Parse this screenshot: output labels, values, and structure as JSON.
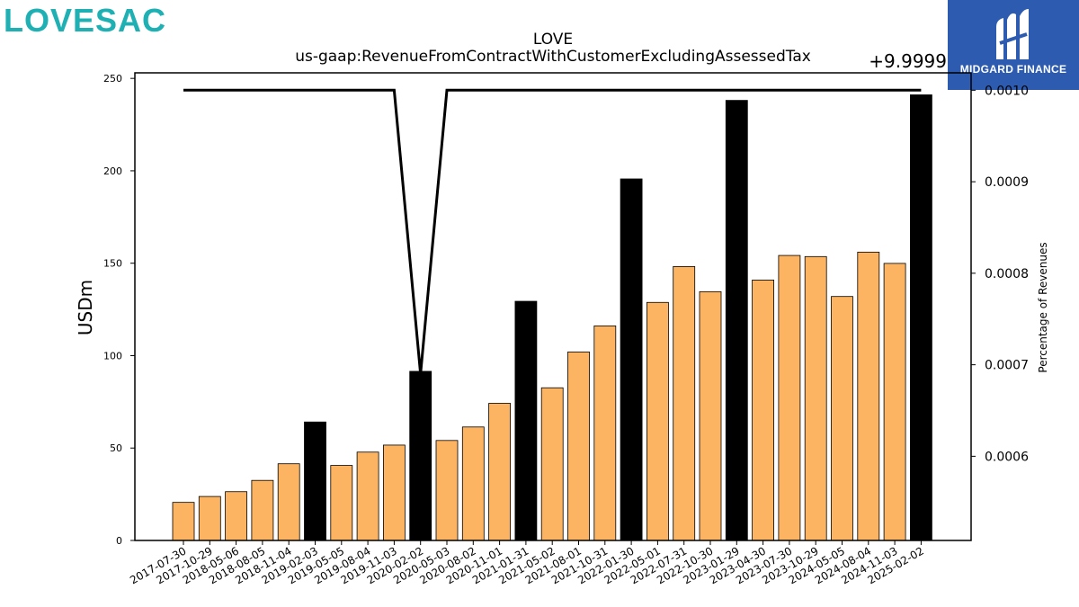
{
  "logos": {
    "left": "LOVESAC",
    "right": "MIDGARD FINANCE"
  },
  "chart_data": {
    "type": "bar",
    "title": "LOVE",
    "subtitle": "us-gaap:RevenueFromContractWithCustomerExcludingAssessedTax",
    "ylabel": "USDm",
    "y2label": "Percentage of Revenues",
    "y2_offset_text": "+9.9999",
    "ylim": [
      0,
      253
    ],
    "yticks": [
      0,
      50,
      100,
      150,
      200,
      250
    ],
    "y2lim": [
      0.000508,
      0.001019
    ],
    "y2ticks": [
      0.0006,
      0.0007,
      0.0008,
      0.0009,
      0.001
    ],
    "y2ticklabels": [
      "0.0006",
      "0.0007",
      "0.0008",
      "0.0009",
      "0.0010"
    ],
    "categories": [
      "2017-07-30",
      "2017-10-29",
      "2018-05-06",
      "2018-08-05",
      "2018-11-04",
      "2019-02-03",
      "2019-05-05",
      "2019-08-04",
      "2019-11-03",
      "2020-02-02",
      "2020-05-03",
      "2020-08-02",
      "2020-11-01",
      "2021-01-31",
      "2021-05-02",
      "2021-08-01",
      "2021-10-31",
      "2022-01-30",
      "2022-05-01",
      "2022-07-31",
      "2022-10-30",
      "2023-01-29",
      "2023-04-30",
      "2023-07-30",
      "2023-10-29",
      "2024-05-05",
      "2024-08-04",
      "2024-11-03",
      "2025-02-02"
    ],
    "series": [
      {
        "values": [
          20.6,
          23.8,
          26.4,
          32.5,
          41.5,
          64.1,
          40.6,
          47.8,
          51.6,
          91.5,
          54.1,
          61.4,
          74.2,
          129.4,
          82.6,
          102.0,
          116.1,
          195.6,
          128.8,
          148.2,
          134.6,
          238.1,
          140.9,
          154.2,
          153.6,
          132.0,
          156.0,
          149.9,
          241.1
        ],
        "highlight": [
          false,
          false,
          false,
          false,
          false,
          true,
          false,
          false,
          false,
          true,
          false,
          false,
          false,
          true,
          false,
          false,
          false,
          true,
          false,
          false,
          false,
          true,
          false,
          false,
          false,
          false,
          false,
          false,
          true
        ]
      },
      {
        "type": "line",
        "axis": "right",
        "values": [
          0.001,
          0.001,
          0.001,
          0.001,
          0.001,
          0.001,
          0.001,
          0.001,
          0.001,
          0.00069,
          0.001,
          0.001,
          0.001,
          0.001,
          0.001,
          0.001,
          0.001,
          0.001,
          0.001,
          0.001,
          0.001,
          0.001,
          0.001,
          0.001,
          0.001,
          0.001,
          0.001,
          0.001,
          0.001
        ]
      }
    ],
    "colors": {
      "bar": "#fdb462",
      "highlight": "#000000",
      "line": "#000000"
    },
    "grid": false
  }
}
